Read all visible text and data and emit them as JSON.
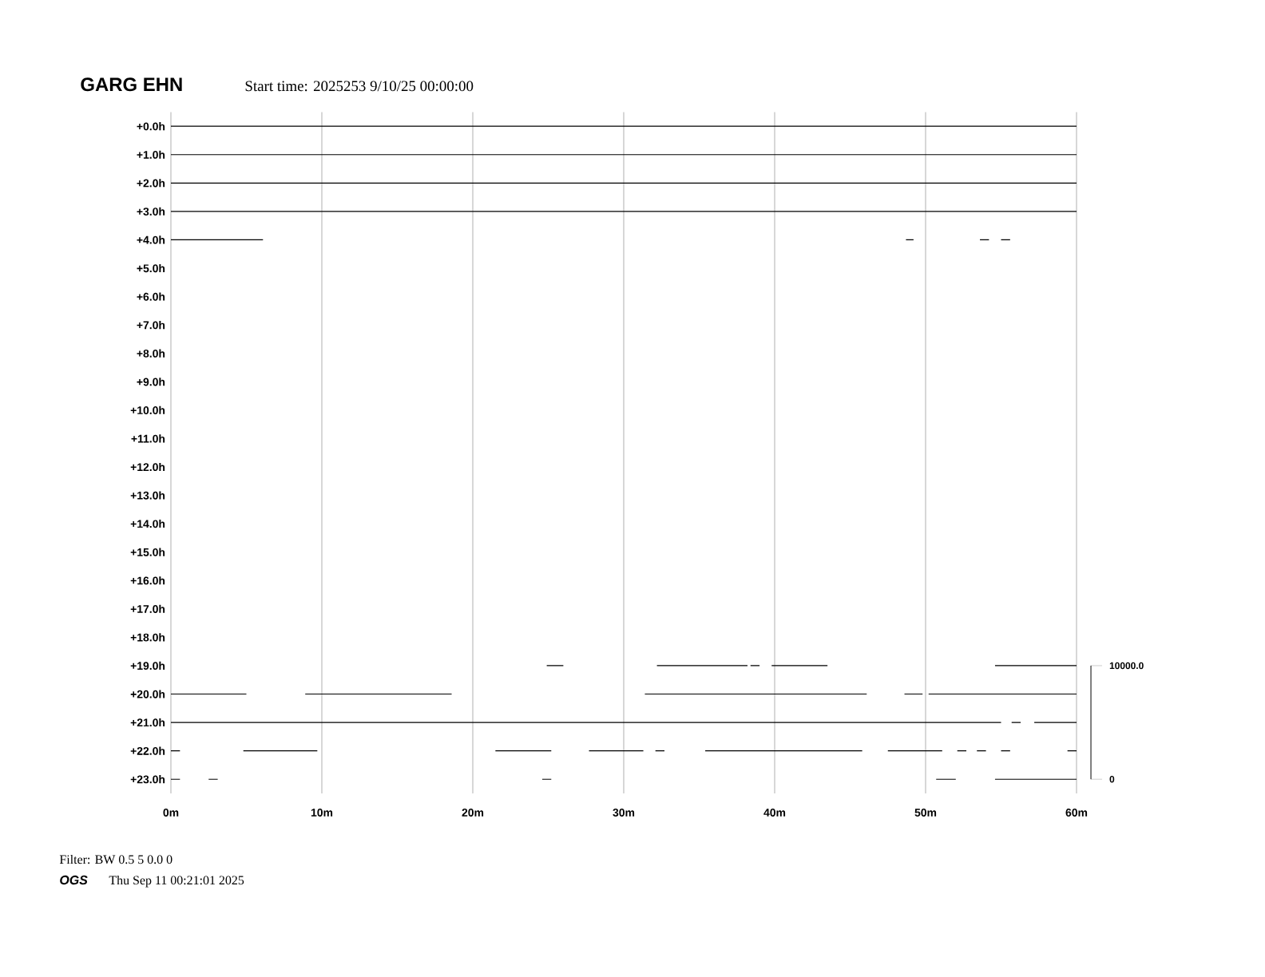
{
  "chart_data": {
    "type": "line",
    "title": "GARG EHN",
    "subtitle": "Start time: 2025253  9/10/25 00:00:00",
    "annotations": [
      "Filter: BW 0.5 5 0.0 0",
      "OGS",
      "Thu Sep 11 00:21:01 2025"
    ],
    "xlim": [
      0,
      60
    ],
    "xticks": [
      {
        "value": 0,
        "label": "0m"
      },
      {
        "value": 10,
        "label": "10m"
      },
      {
        "value": 20,
        "label": "20m"
      },
      {
        "value": 30,
        "label": "30m"
      },
      {
        "value": 40,
        "label": "40m"
      },
      {
        "value": 50,
        "label": "50m"
      },
      {
        "value": 60,
        "label": "60m"
      }
    ],
    "ylim": [
      23.5,
      -0.5
    ],
    "yticks": [
      {
        "value": 0,
        "label": "+0.0h"
      },
      {
        "value": 1,
        "label": "+1.0h"
      },
      {
        "value": 2,
        "label": "+2.0h"
      },
      {
        "value": 3,
        "label": "+3.0h"
      },
      {
        "value": 4,
        "label": "+4.0h"
      },
      {
        "value": 5,
        "label": "+5.0h"
      },
      {
        "value": 6,
        "label": "+6.0h"
      },
      {
        "value": 7,
        "label": "+7.0h"
      },
      {
        "value": 8,
        "label": "+8.0h"
      },
      {
        "value": 9,
        "label": "+9.0h"
      },
      {
        "value": 10,
        "label": "+10.0h"
      },
      {
        "value": 11,
        "label": "+11.0h"
      },
      {
        "value": 12,
        "label": "+12.0h"
      },
      {
        "value": 13,
        "label": "+13.0h"
      },
      {
        "value": 14,
        "label": "+14.0h"
      },
      {
        "value": 15,
        "label": "+15.0h"
      },
      {
        "value": 16,
        "label": "+16.0h"
      },
      {
        "value": 17,
        "label": "+17.0h"
      },
      {
        "value": 18,
        "label": "+18.0h"
      },
      {
        "value": 19,
        "label": "+19.0h"
      },
      {
        "value": 20,
        "label": "+20.0h"
      },
      {
        "value": 21,
        "label": "+21.0h"
      },
      {
        "value": 22,
        "label": "+22.0h"
      },
      {
        "value": 23,
        "label": "+23.0h"
      }
    ],
    "y2lim": [
      -1250,
      58750
    ],
    "y2ticks": [
      0,
      {
        "value": 10000,
        "label": "10000.0"
      }
    ],
    "grid": "x",
    "marker": "none",
    "line_style": "solid",
    "series": [
      {
        "color": "#000000",
        "x": [
          0,
          60
        ],
        "values": [
          0,
          0
        ]
      },
      {
        "color": "#000000",
        "x": [
          0,
          60
        ],
        "values": [
          1,
          1
        ]
      },
      {
        "color": "#000000",
        "x": [
          0,
          60
        ],
        "values": [
          2,
          2
        ]
      },
      {
        "color": "#000000",
        "x": [
          0,
          60
        ],
        "values": [
          3,
          3
        ]
      },
      {
        "color": "#000000",
        "x": [
          0,
          6.1,
          null,
          48.7,
          49.2,
          null,
          53.6,
          54.2,
          null,
          55.0,
          55.6
        ],
        "values": [
          4,
          4,
          null,
          4,
          4,
          null,
          4,
          4,
          null,
          4,
          4
        ]
      },
      {
        "color": "#000000",
        "x": [
          24.9,
          26.0,
          null,
          32.2,
          38.2,
          null,
          38.4,
          39.0,
          null,
          39.8,
          43.5,
          null,
          54.6,
          60
        ],
        "values": [
          19,
          19,
          null,
          19,
          19,
          null,
          19,
          19,
          null,
          19,
          19,
          null,
          19,
          19
        ]
      },
      {
        "color": "#000000",
        "x": [
          0,
          5.0,
          null,
          8.9,
          18.6,
          null,
          31.4,
          46.1,
          null,
          48.6,
          49.8,
          null,
          50.2,
          60
        ],
        "values": [
          20,
          20,
          null,
          20,
          20,
          null,
          20,
          20,
          null,
          20,
          20,
          null,
          20,
          20
        ]
      },
      {
        "color": "#000000",
        "x": [
          0,
          55.0,
          null,
          55.7,
          56.3,
          null,
          57.2,
          60
        ],
        "values": [
          21,
          21,
          null,
          21,
          21,
          null,
          21,
          21
        ]
      },
      {
        "color": "#000000",
        "x": [
          0,
          0.6,
          null,
          4.8,
          9.7,
          null,
          21.5,
          25.2,
          null,
          27.7,
          31.3,
          null,
          32.1,
          32.7,
          null,
          35.4,
          45.8,
          null,
          47.5,
          51.1,
          null,
          52.1,
          52.7,
          null,
          53.4,
          54.0,
          null,
          55.0,
          55.6,
          null,
          59.4,
          60
        ],
        "values": [
          22,
          22,
          null,
          22,
          22,
          null,
          22,
          22,
          null,
          22,
          22,
          null,
          22,
          22,
          null,
          22,
          22,
          null,
          22,
          22,
          null,
          22,
          22,
          null,
          22,
          22,
          null,
          22,
          22,
          null,
          22,
          22
        ]
      },
      {
        "color": "#000000",
        "x": [
          0,
          0.6,
          null,
          2.5,
          3.1,
          null,
          24.6,
          25.2,
          null,
          50.7,
          52.0,
          null,
          54.6,
          60
        ],
        "values": [
          23,
          23,
          null,
          23,
          23,
          null,
          23,
          23,
          null,
          23,
          23,
          null,
          23,
          23
        ]
      }
    ]
  }
}
